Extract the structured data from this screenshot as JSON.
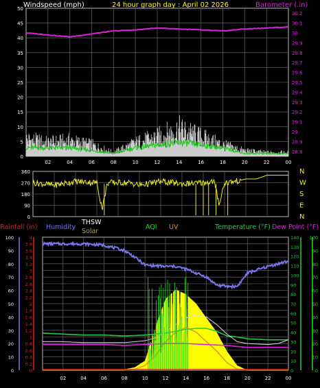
{
  "title": "24 hour graph day : April 02 2026",
  "colors": {
    "grid": "#5a5a5a",
    "wind": "#ffffff",
    "wind_avg": "#22cc22",
    "barometer": "#dd22dd",
    "direction": "#eeee22",
    "rain": "#dd2222",
    "humidity": "#7777ee",
    "thsw": "#ffffff",
    "solar": "#ffff00",
    "aqi": "#22dd22",
    "uv": "#e0901a",
    "temperature": "#22cc44",
    "dew_point": "#dd22dd"
  },
  "chart_data": [
    {
      "type": "line",
      "panel": "wind-barometer",
      "ylabel_left": "Windspeed (mph)",
      "ylabel_right": "Barometer (inHg)",
      "left_ticks": [
        "50",
        "45",
        "40",
        "35",
        "30",
        "25",
        "20",
        "15",
        "10",
        "5",
        "0"
      ],
      "right_ticks": [
        "30.2",
        "30.1",
        "30",
        "29.9",
        "29.8",
        "29.7",
        "29.6",
        "29.5",
        "29.4",
        "29.3",
        "29.2",
        "29.1",
        "29",
        "28.9",
        "28.8"
      ],
      "x_ticks": [
        "02",
        "04",
        "06",
        "08",
        "10",
        "12",
        "14",
        "16",
        "18",
        "20",
        "22",
        "00"
      ],
      "ylim_left": [
        0,
        50
      ],
      "ylim_right": [
        28.75,
        30.25
      ],
      "series": [
        {
          "hours": [
            0,
            2,
            4,
            6,
            8,
            10,
            12,
            14,
            16,
            18,
            20,
            22,
            24
          ],
          "gust": [
            9,
            7,
            8,
            6,
            2,
            7,
            10,
            14,
            10,
            6,
            3,
            2,
            2
          ],
          "avg": [
            3,
            3,
            3,
            2,
            1,
            3,
            4,
            5,
            4,
            3,
            1,
            1,
            1
          ]
        },
        {
          "hours": [
            0,
            2,
            4,
            6,
            8,
            10,
            12,
            14,
            16,
            18,
            20,
            22,
            24
          ],
          "values": [
            30.0,
            29.98,
            29.96,
            29.99,
            30.02,
            30.03,
            30.05,
            30.04,
            30.03,
            30.02,
            30.04,
            30.05,
            30.06
          ]
        }
      ]
    },
    {
      "type": "line",
      "panel": "wind-direction",
      "left_ticks": [
        "360",
        "270",
        "180",
        "90",
        "0"
      ],
      "right_labels": [
        "N",
        "W",
        "S",
        "E",
        "N"
      ],
      "ylim": [
        0,
        360
      ],
      "series": [
        {
          "hours": [
            0,
            2,
            4,
            6,
            6.5,
            7,
            8,
            9,
            10,
            12,
            14,
            16,
            17,
            17.5,
            18,
            19,
            19.5,
            20,
            21,
            22,
            24
          ],
          "values": [
            270,
            250,
            280,
            270,
            60,
            270,
            270,
            270,
            250,
            280,
            260,
            270,
            280,
            100,
            270,
            280,
            290,
            300,
            300,
            330,
            330
          ]
        }
      ]
    },
    {
      "type": "line",
      "panel": "weather",
      "legend": [
        "Rainfall (in)",
        "Humidity",
        "THSW",
        "Solar",
        "AQI",
        "UV",
        "Temperature (°F)",
        "Dew Point (°F)"
      ],
      "rain_ticks": [
        "4",
        "3.8",
        "3.6",
        "3.4",
        "3.2",
        "3",
        "2.8",
        "2.6",
        "2.4",
        "2.2",
        "2",
        "1.8",
        "1.6",
        "1.4",
        "1.2",
        "1",
        "0.8",
        "0.6",
        "0.4",
        "0.2",
        "0"
      ],
      "humidity_ticks": [
        "100",
        "90",
        "80",
        "70",
        "60",
        "50",
        "40",
        "30",
        "20",
        "10",
        "0"
      ],
      "temp_ticks": [
        "140",
        "130",
        "120",
        "110",
        "100",
        "90",
        "80",
        "70",
        "60",
        "50",
        "40",
        "30",
        "20",
        "10",
        "0"
      ],
      "ylim_humidity": [
        0,
        100
      ],
      "ylim_temp": [
        0,
        140
      ],
      "series": [
        {
          "hours": [
            0,
            2,
            4,
            6,
            8,
            9,
            10,
            12,
            13,
            14,
            16,
            17,
            18,
            19,
            20,
            22,
            24
          ],
          "values": [
            95,
            95,
            95,
            94,
            90,
            85,
            79,
            78,
            78,
            76,
            70,
            64,
            63,
            63,
            73,
            78,
            82
          ]
        },
        {
          "hours": [
            0,
            6,
            7,
            8,
            9,
            10,
            11,
            12,
            13,
            14,
            15,
            16,
            17,
            18,
            19,
            20,
            24
          ],
          "values": [
            0,
            0,
            0,
            1,
            3,
            10,
            45,
            75,
            85,
            80,
            70,
            55,
            40,
            20,
            5,
            0,
            0
          ]
        },
        {
          "hours": [
            0,
            8,
            9,
            10,
            11,
            12,
            13,
            14,
            15,
            16,
            17,
            18,
            19,
            20,
            24
          ],
          "values": [
            0,
            0,
            1,
            5,
            15,
            30,
            40,
            45,
            40,
            30,
            20,
            8,
            1,
            0,
            0
          ]
        },
        {
          "hours": [
            0,
            2,
            4,
            6,
            8,
            10,
            11,
            12,
            13,
            14,
            15,
            16,
            17,
            18,
            19,
            20,
            22,
            24
          ],
          "values": [
            39,
            38,
            37,
            37,
            36,
            37,
            38,
            39,
            41,
            43,
            44,
            44,
            41,
            36,
            35,
            33,
            32,
            32
          ]
        },
        {
          "hours": [
            0,
            2,
            4,
            6,
            8,
            10,
            12,
            14,
            16,
            18,
            20,
            22,
            24
          ],
          "values": [
            27,
            27,
            27,
            27,
            26,
            27,
            28,
            28,
            27,
            26,
            24,
            24,
            24
          ]
        },
        {
          "hours": [
            0,
            2,
            4,
            6,
            8,
            10,
            11,
            12,
            13,
            14,
            15,
            16,
            17,
            18,
            19,
            20,
            22,
            23,
            24
          ],
          "values": [
            30,
            30,
            29,
            29,
            29,
            31,
            34,
            40,
            48,
            55,
            58,
            56,
            48,
            38,
            30,
            28,
            27,
            28,
            32
          ]
        }
      ]
    }
  ]
}
